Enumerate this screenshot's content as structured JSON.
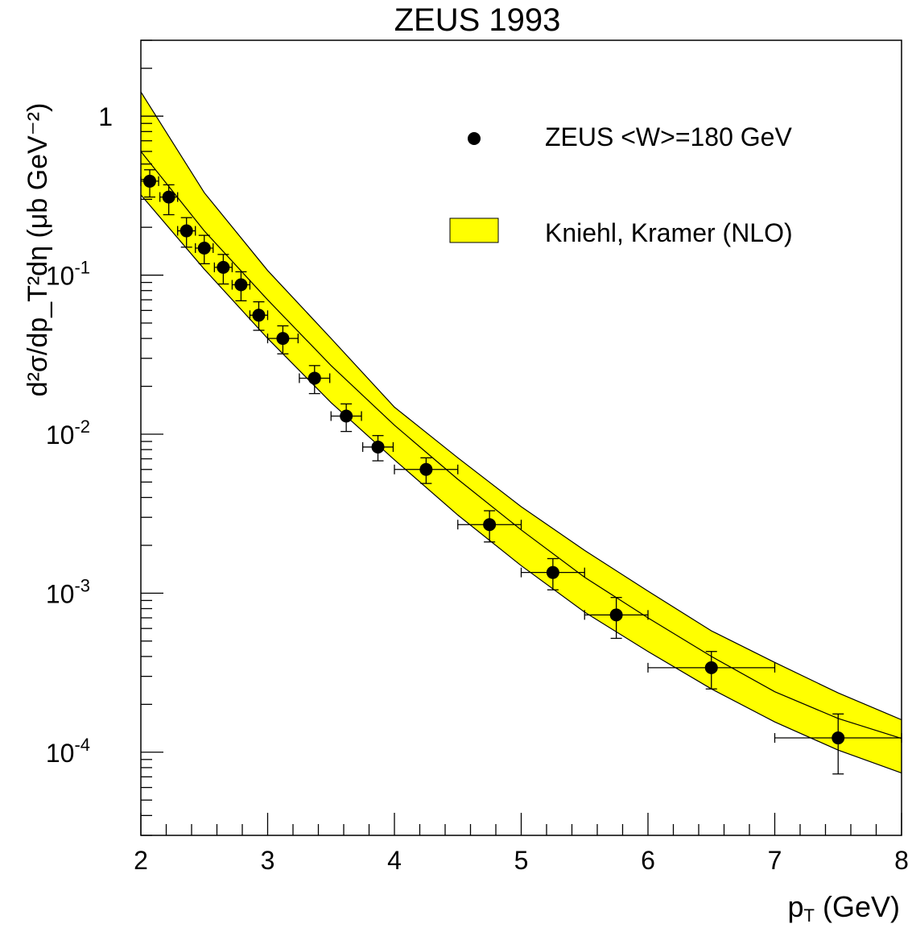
{
  "chart_data": {
    "type": "scatter",
    "title": "ZEUS 1993",
    "xlabel": "p",
    "xlabel_sub": "T",
    "xlabel_unit": "(GeV)",
    "ylabel_text": "d²σ/dp_T²dη (μb GeV⁻²)",
    "xlim": [
      2,
      8
    ],
    "ylim": [
      3e-05,
      3
    ],
    "yscale": "log",
    "x_ticks": [
      2,
      3,
      4,
      5,
      6,
      7,
      8
    ],
    "x_tick_labels": [
      "2",
      "3",
      "4",
      "5",
      "6",
      "7",
      "8"
    ],
    "y_decades": [
      {
        "value": 1,
        "base": "1",
        "exp": ""
      },
      {
        "value": 0.1,
        "base": "10",
        "exp": "-1"
      },
      {
        "value": 0.01,
        "base": "10",
        "exp": "-2"
      },
      {
        "value": 0.001,
        "base": "10",
        "exp": "-3"
      },
      {
        "value": 0.0001,
        "base": "10",
        "exp": "-4"
      }
    ],
    "legend": {
      "position": "top-right",
      "entries": [
        {
          "label": "ZEUS <W>=180 GeV",
          "kind": "marker"
        },
        {
          "label": "Kniehl, Kramer (NLO)",
          "kind": "band"
        }
      ]
    },
    "colors": {
      "band": "#ffff00",
      "line": "#000000",
      "marker": "#000000"
    },
    "series": [
      {
        "name": "ZEUS <W>=180 GeV",
        "kind": "points",
        "points": [
          {
            "x": 2.07,
            "y": 0.39,
            "xerr": 0.07,
            "ylo": 0.31,
            "yhi": 0.46
          },
          {
            "x": 2.22,
            "y": 0.31,
            "xerr": 0.07,
            "ylo": 0.24,
            "yhi": 0.37
          },
          {
            "x": 2.36,
            "y": 0.19,
            "xerr": 0.07,
            "ylo": 0.15,
            "yhi": 0.23
          },
          {
            "x": 2.5,
            "y": 0.148,
            "xerr": 0.07,
            "ylo": 0.118,
            "yhi": 0.178
          },
          {
            "x": 2.65,
            "y": 0.112,
            "xerr": 0.07,
            "ylo": 0.088,
            "yhi": 0.135
          },
          {
            "x": 2.79,
            "y": 0.087,
            "xerr": 0.07,
            "ylo": 0.069,
            "yhi": 0.105
          },
          {
            "x": 2.93,
            "y": 0.056,
            "xerr": 0.07,
            "ylo": 0.045,
            "yhi": 0.068
          },
          {
            "x": 3.12,
            "y": 0.04,
            "xerr": 0.12,
            "ylo": 0.032,
            "yhi": 0.048
          },
          {
            "x": 3.37,
            "y": 0.0225,
            "xerr": 0.12,
            "ylo": 0.018,
            "yhi": 0.027
          },
          {
            "x": 3.62,
            "y": 0.013,
            "xerr": 0.12,
            "ylo": 0.0104,
            "yhi": 0.0155
          },
          {
            "x": 3.87,
            "y": 0.0083,
            "xerr": 0.12,
            "ylo": 0.0068,
            "yhi": 0.0098
          },
          {
            "x": 4.25,
            "y": 0.006,
            "xerr": 0.25,
            "ylo": 0.0049,
            "yhi": 0.0071
          },
          {
            "x": 4.75,
            "y": 0.0027,
            "xerr": 0.25,
            "ylo": 0.0021,
            "yhi": 0.0033
          },
          {
            "x": 5.25,
            "y": 0.00135,
            "xerr": 0.25,
            "ylo": 0.00105,
            "yhi": 0.00165
          },
          {
            "x": 5.75,
            "y": 0.00073,
            "xerr": 0.25,
            "ylo": 0.00052,
            "yhi": 0.00094
          },
          {
            "x": 6.5,
            "y": 0.00034,
            "xerr": 0.5,
            "ylo": 0.00025,
            "yhi": 0.00043
          },
          {
            "x": 7.5,
            "y": 0.000123,
            "xerr": 0.5,
            "ylo": 7.3e-05,
            "yhi": 0.000174
          }
        ]
      },
      {
        "name": "Kniehl, Kramer (NLO)",
        "kind": "band",
        "x": [
          2.0,
          2.5,
          3.0,
          3.5,
          4.0,
          4.5,
          5.0,
          5.5,
          6.0,
          6.5,
          7.0,
          7.5,
          8.0
        ],
        "lower": [
          0.32,
          0.109,
          0.04,
          0.0158,
          0.0069,
          0.0031,
          0.00149,
          0.00076,
          0.00043,
          0.00025,
          0.000155,
          0.000103,
          7.4e-05
        ],
        "central": [
          0.6,
          0.19,
          0.07,
          0.027,
          0.0114,
          0.0052,
          0.0025,
          0.00126,
          0.0007,
          0.0004,
          0.00024,
          0.000163,
          0.000122
        ],
        "upper": [
          1.42,
          0.33,
          0.107,
          0.04,
          0.0148,
          0.0071,
          0.0035,
          0.00186,
          0.00103,
          0.00058,
          0.000367,
          0.000236,
          0.00016
        ]
      }
    ]
  }
}
